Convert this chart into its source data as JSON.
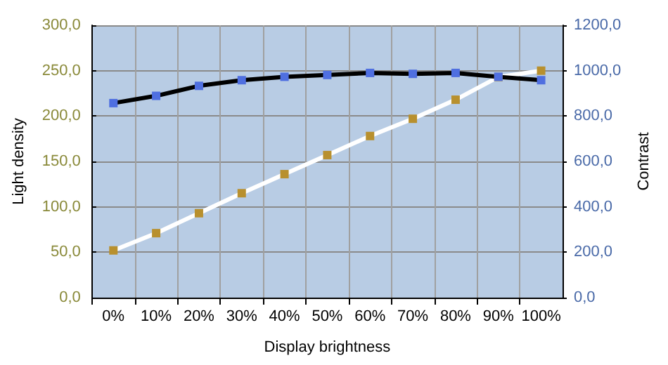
{
  "chart_data": {
    "type": "line",
    "xlabel": "Display brightness",
    "ylabel": "Light density",
    "y2label": "Contrast",
    "categories": [
      "0%",
      "10%",
      "20%",
      "30%",
      "40%",
      "50%",
      "60%",
      "70%",
      "80%",
      "90%",
      "100%"
    ],
    "series": [
      {
        "color": "#ffffff",
        "values": [
          52,
          71,
          93,
          115,
          136,
          157,
          178,
          197,
          218,
          243,
          250
        ]
      },
      {
        "color": "#000000",
        "axis": "y2",
        "values": [
          857,
          889,
          933,
          958,
          973,
          981,
          990,
          986,
          990,
          973,
          958
        ]
      }
    ],
    "ylim": [
      0,
      300
    ],
    "yticks": [
      {
        "value": 0,
        "label": "0,0"
      },
      {
        "value": 50,
        "label": "50,0"
      },
      {
        "value": 100,
        "label": "100,0"
      },
      {
        "value": 150,
        "label": "150,0"
      },
      {
        "value": 200,
        "label": "200,0"
      },
      {
        "value": 250,
        "label": "250,0"
      },
      {
        "value": 300,
        "label": "300,0"
      }
    ],
    "y2lim": [
      0,
      1200
    ],
    "y2ticks": [
      {
        "value": 0,
        "label": "0,0"
      },
      {
        "value": 200,
        "label": "200,0"
      },
      {
        "value": 400,
        "label": "400,0"
      },
      {
        "value": 600,
        "label": "600,0"
      },
      {
        "value": 800,
        "label": "800,0"
      },
      {
        "value": 1000,
        "label": "1000,0"
      },
      {
        "value": 1200,
        "label": "1200,0"
      }
    ],
    "grid": true,
    "marker": "square",
    "line_style": "solid"
  }
}
